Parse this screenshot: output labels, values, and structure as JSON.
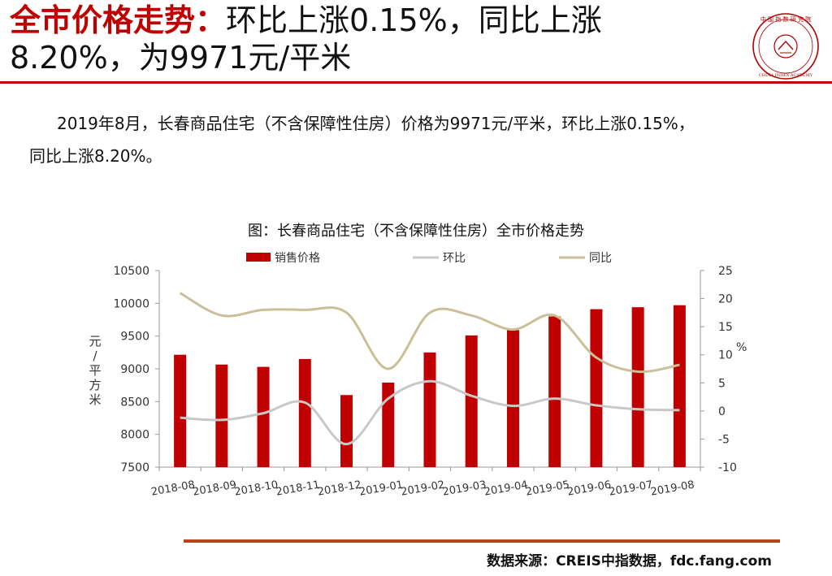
{
  "header": {
    "title_highlight": "全市价格走势：",
    "title_line1_rest": "环比上涨0.15%，同比上涨",
    "title_line2": "8.20%，为9971元/平米"
  },
  "seal": {
    "text": "中国指数研究院",
    "center_text": "中指",
    "english": "CHINA INDEX ACADEMY"
  },
  "paragraph": {
    "line1": "2019年8月，长春商品住宅（不含保障性住房）价格为9971元/平米，环比上涨0.15%，",
    "line2": "同比上涨8.20%。"
  },
  "source_text": "数据来源：CREIS中指数据，fdc.fang.com",
  "colors": {
    "accent": "#c00000",
    "bar": "#c00000",
    "mom": "#c8c8c8",
    "yoy": "#c9bf98",
    "rule": "#b8441a"
  },
  "chart_data": {
    "type": "bar",
    "title": "图：长春商品住宅（不含保障性住房）全市价格走势",
    "categories": [
      "2018-08",
      "2018-09",
      "2018-10",
      "2018-11",
      "2018-12",
      "2019-01",
      "2019-02",
      "2019-03",
      "2019-04",
      "2019-05",
      "2019-06",
      "2019-07",
      "2019-08"
    ],
    "ylabel_left": "元/平方米",
    "ylabel_right": "%",
    "ylim_left": [
      7500,
      10500
    ],
    "yticks_left": [
      7500,
      8000,
      8500,
      9000,
      9500,
      10000,
      10500
    ],
    "ylim_right": [
      -10,
      25
    ],
    "yticks_right": [
      -10,
      -5,
      0,
      5,
      10,
      15,
      20,
      25
    ],
    "legend_placement": "top",
    "grid": false,
    "series": [
      {
        "name": "销售价格",
        "type": "bar",
        "axis": "left",
        "values": [
          9215,
          9065,
          9030,
          9150,
          8600,
          8790,
          9250,
          9510,
          9590,
          9800,
          9910,
          9940,
          9971
        ]
      },
      {
        "name": "环比",
        "type": "line",
        "axis": "right",
        "values": [
          -1.2,
          -1.6,
          -0.4,
          1.5,
          -5.9,
          2.2,
          5.3,
          2.7,
          0.9,
          2.2,
          1.0,
          0.3,
          0.15
        ]
      },
      {
        "name": "同比",
        "type": "line",
        "axis": "right",
        "values": [
          21.0,
          17.0,
          18.0,
          18.0,
          17.5,
          7.5,
          17.5,
          17.0,
          14.5,
          17.0,
          9.5,
          7.0,
          8.2
        ]
      }
    ]
  }
}
